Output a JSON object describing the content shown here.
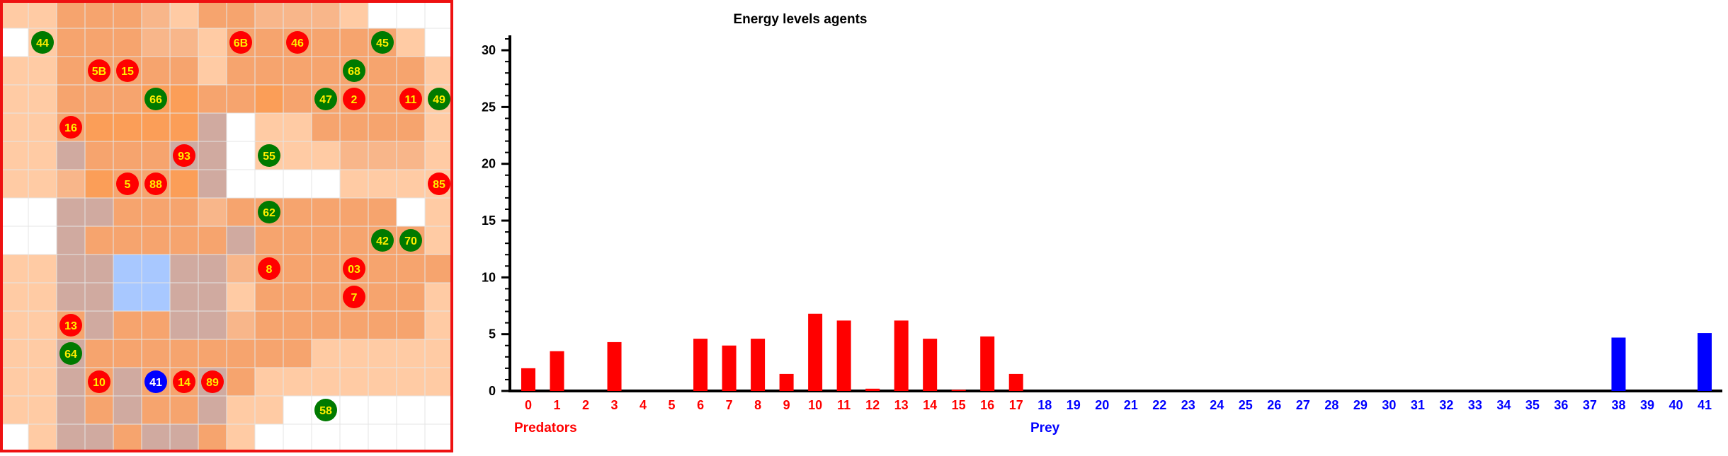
{
  "colors": {
    "predator": "#ff0000",
    "prey": "#0000ff",
    "green_agent": "#007a00",
    "agent_label": "#ffee00",
    "grid_border": "#ee1111",
    "water": "#a8c8ff",
    "rock": "#d0aaa0",
    "empty": "#ffffff"
  },
  "grid": {
    "cols": 16,
    "rows": 16,
    "legend": {
      ".": "empty",
      "1": "light",
      "2": "medium",
      "3": "dark",
      "4": "strong",
      "r": "rock",
      "w": "water"
    },
    "cells": [
      "1133321332221...",
      ".13332213333331.",
      "1133333133333331",
      "1133344334333331",
      "1134444r.1133331",
      "11r333rr.1112221",
      "1124334r....1111",
      "..rr3332333333.1",
      "..r33333r3333331",
      "11rrwwrr23333333",
      "11rrwwrr13333331",
      "113r33rr23333331",
      "11r3333333311111",
      "11r3r33r31111111",
      "11r3r33r11......",
      ".1rr3rr31......."
    ],
    "agents": [
      {
        "label": "44",
        "kind": "green",
        "col": 1,
        "row": 1
      },
      {
        "label": "6B",
        "kind": "predator",
        "col": 8,
        "row": 1
      },
      {
        "label": "46",
        "kind": "predator",
        "col": 10,
        "row": 1
      },
      {
        "label": "45",
        "kind": "green",
        "col": 13,
        "row": 1
      },
      {
        "label": "5B",
        "kind": "predator",
        "col": 3,
        "row": 2
      },
      {
        "label": "15",
        "kind": "predator",
        "col": 4,
        "row": 2
      },
      {
        "label": "68",
        "kind": "green",
        "col": 12,
        "row": 2
      },
      {
        "label": "66",
        "kind": "green",
        "col": 5,
        "row": 3
      },
      {
        "label": "47",
        "kind": "green",
        "col": 11,
        "row": 3
      },
      {
        "label": "2",
        "kind": "predator",
        "col": 12,
        "row": 3
      },
      {
        "label": "11",
        "kind": "predator",
        "col": 14,
        "row": 3
      },
      {
        "label": "49",
        "kind": "green",
        "col": 15,
        "row": 3
      },
      {
        "label": "16",
        "kind": "predator",
        "col": 2,
        "row": 4
      },
      {
        "label": "93",
        "kind": "predator",
        "col": 6,
        "row": 5
      },
      {
        "label": "55",
        "kind": "green",
        "col": 9,
        "row": 5
      },
      {
        "label": "5",
        "kind": "predator",
        "col": 4,
        "row": 6
      },
      {
        "label": "88",
        "kind": "predator",
        "col": 5,
        "row": 6
      },
      {
        "label": "85",
        "kind": "predator",
        "col": 15,
        "row": 6
      },
      {
        "label": "62",
        "kind": "green",
        "col": 9,
        "row": 7
      },
      {
        "label": "42",
        "kind": "green",
        "col": 13,
        "row": 8
      },
      {
        "label": "70",
        "kind": "green",
        "col": 14,
        "row": 8
      },
      {
        "label": "8",
        "kind": "predator",
        "col": 9,
        "row": 9
      },
      {
        "label": "03",
        "kind": "predator",
        "col": 12,
        "row": 9
      },
      {
        "label": "7",
        "kind": "predator",
        "col": 12,
        "row": 10
      },
      {
        "label": "13",
        "kind": "predator",
        "col": 2,
        "row": 11
      },
      {
        "label": "64",
        "kind": "green",
        "col": 2,
        "row": 12
      },
      {
        "label": "10",
        "kind": "predator",
        "col": 3,
        "row": 13
      },
      {
        "label": "41",
        "kind": "prey",
        "col": 5,
        "row": 13
      },
      {
        "label": "14",
        "kind": "predator",
        "col": 6,
        "row": 13
      },
      {
        "label": "89",
        "kind": "predator",
        "col": 7,
        "row": 13
      },
      {
        "label": "58",
        "kind": "green",
        "col": 11,
        "row": 14
      }
    ]
  },
  "chart_data": {
    "type": "bar",
    "title": "Energy levels agents",
    "ylim": [
      0,
      31
    ],
    "yticks": [
      "0",
      "5",
      "10",
      "15",
      "20",
      "25",
      "30"
    ],
    "categories": [
      "0",
      "1",
      "2",
      "3",
      "4",
      "5",
      "6",
      "7",
      "8",
      "9",
      "10",
      "11",
      "12",
      "13",
      "14",
      "15",
      "16",
      "17",
      "18",
      "19",
      "20",
      "21",
      "22",
      "23",
      "24",
      "25",
      "26",
      "27",
      "28",
      "29",
      "30",
      "31",
      "32",
      "33",
      "34",
      "35",
      "36",
      "37",
      "38",
      "39",
      "40",
      "41"
    ],
    "values": [
      2,
      3.5,
      0,
      4.3,
      0,
      0,
      4.6,
      4,
      4.6,
      1.5,
      6.8,
      6.2,
      0.2,
      6.2,
      4.6,
      0.1,
      4.8,
      1.5,
      0,
      0,
      0,
      0,
      0,
      0,
      0,
      0,
      0,
      0,
      0,
      0,
      0,
      0,
      0,
      0,
      0,
      0,
      0,
      0,
      4.7,
      0,
      0,
      5.1
    ],
    "predator_count": 18,
    "group_labels": {
      "predators": "Predators",
      "prey": "Prey"
    }
  }
}
